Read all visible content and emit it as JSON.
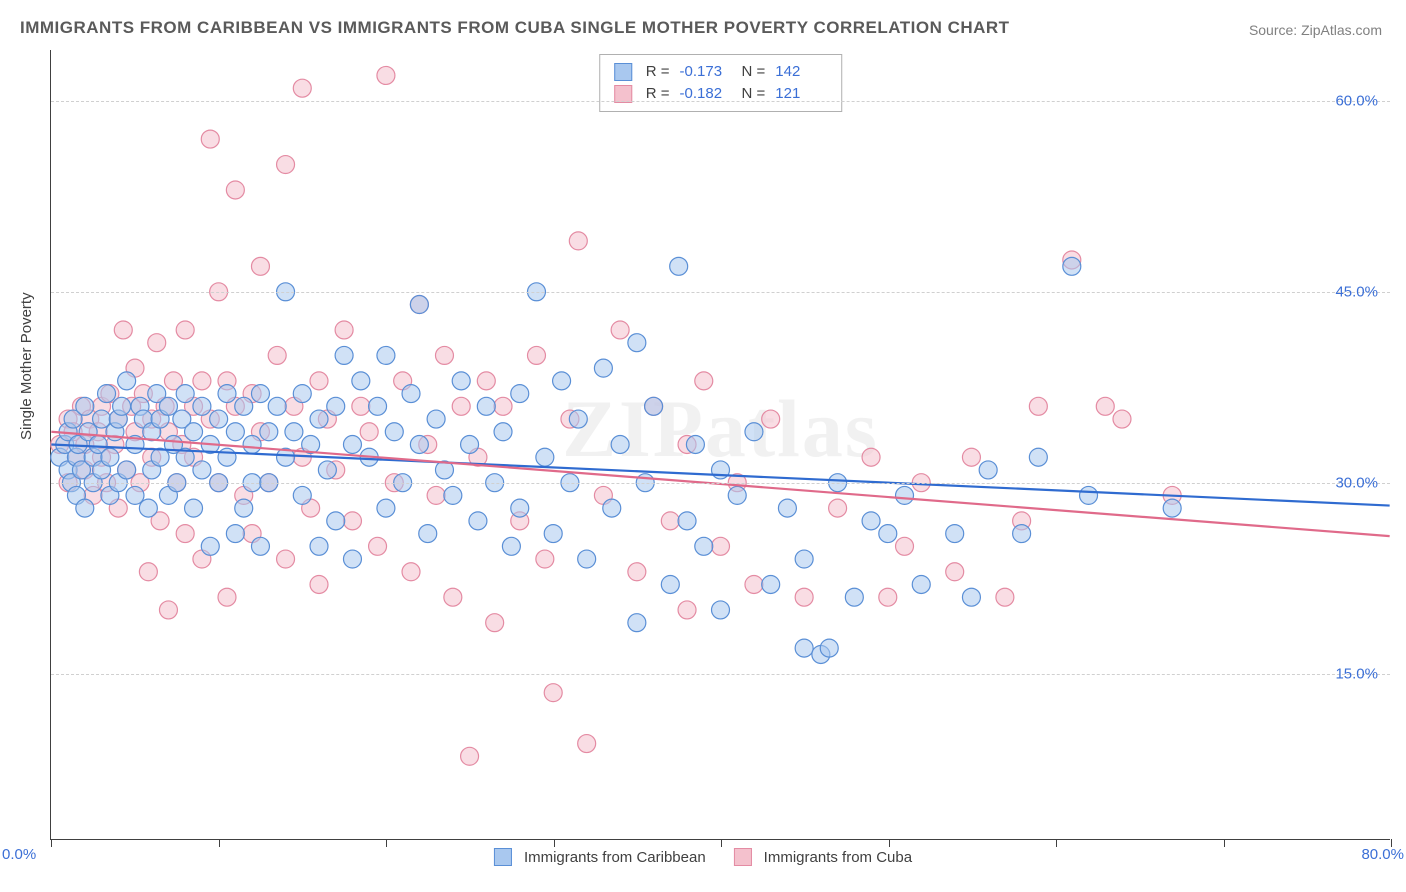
{
  "title": "IMMIGRANTS FROM CARIBBEAN VS IMMIGRANTS FROM CUBA SINGLE MOTHER POVERTY CORRELATION CHART",
  "source": "Source: ZipAtlas.com",
  "watermark": "ZIPatlas",
  "chart": {
    "type": "scatter",
    "ylabel": "Single Mother Poverty",
    "xlim": [
      0,
      80
    ],
    "ylim": [
      2,
      64
    ],
    "x_ticks": [
      0,
      10,
      20,
      30,
      40,
      50,
      60,
      70,
      80
    ],
    "x_tick_labels": {
      "0": "0.0%",
      "80": "80.0%"
    },
    "y_grid": [
      15,
      30,
      45,
      60
    ],
    "y_tick_labels": {
      "15": "15.0%",
      "30": "30.0%",
      "45": "45.0%",
      "60": "60.0%"
    },
    "grid_color": "#d0d0d0",
    "axis_color": "#404040",
    "background_color": "#ffffff",
    "label_fontsize": 15,
    "tick_fontsize": 15,
    "tick_color": "#3b6fd6",
    "marker_radius": 9,
    "marker_opacity": 0.55,
    "line_width": 2.2,
    "series": [
      {
        "name": "Immigrants from Caribbean",
        "fill": "#a9c8ef",
        "stroke": "#5a8fd6",
        "line_color": "#2f6bd0",
        "R": "-0.173",
        "N": "142",
        "trend": {
          "x1": 0,
          "y1": 33.0,
          "x2": 80,
          "y2": 28.2
        },
        "points": [
          [
            0.5,
            32
          ],
          [
            0.8,
            33
          ],
          [
            1,
            31
          ],
          [
            1,
            34
          ],
          [
            1.2,
            30
          ],
          [
            1.3,
            35
          ],
          [
            1.5,
            32
          ],
          [
            1.5,
            29
          ],
          [
            1.6,
            33
          ],
          [
            1.8,
            31
          ],
          [
            2,
            36
          ],
          [
            2,
            28
          ],
          [
            2.2,
            34
          ],
          [
            2.5,
            32
          ],
          [
            2.5,
            30
          ],
          [
            2.8,
            33
          ],
          [
            3,
            31
          ],
          [
            3,
            35
          ],
          [
            3.3,
            37
          ],
          [
            3.5,
            29
          ],
          [
            3.5,
            32
          ],
          [
            3.8,
            34
          ],
          [
            4,
            35
          ],
          [
            4,
            30
          ],
          [
            4.2,
            36
          ],
          [
            4.5,
            38
          ],
          [
            4.5,
            31
          ],
          [
            5,
            33
          ],
          [
            5,
            29
          ],
          [
            5.3,
            36
          ],
          [
            5.5,
            35
          ],
          [
            5.8,
            28
          ],
          [
            6,
            34
          ],
          [
            6,
            31
          ],
          [
            6.3,
            37
          ],
          [
            6.5,
            32
          ],
          [
            6.5,
            35
          ],
          [
            7,
            36
          ],
          [
            7,
            29
          ],
          [
            7.3,
            33
          ],
          [
            7.5,
            30
          ],
          [
            7.8,
            35
          ],
          [
            8,
            32
          ],
          [
            8,
            37
          ],
          [
            8.5,
            34
          ],
          [
            8.5,
            28
          ],
          [
            9,
            36
          ],
          [
            9,
            31
          ],
          [
            9.5,
            33
          ],
          [
            9.5,
            25
          ],
          [
            10,
            35
          ],
          [
            10,
            30
          ],
          [
            10.5,
            37
          ],
          [
            10.5,
            32
          ],
          [
            11,
            34
          ],
          [
            11,
            26
          ],
          [
            11.5,
            36
          ],
          [
            11.5,
            28
          ],
          [
            12,
            33
          ],
          [
            12,
            30
          ],
          [
            12.5,
            37
          ],
          [
            12.5,
            25
          ],
          [
            13,
            34
          ],
          [
            13,
            30
          ],
          [
            13.5,
            36
          ],
          [
            14,
            32
          ],
          [
            14,
            45
          ],
          [
            14.5,
            34
          ],
          [
            15,
            29
          ],
          [
            15,
            37
          ],
          [
            15.5,
            33
          ],
          [
            16,
            35
          ],
          [
            16,
            25
          ],
          [
            16.5,
            31
          ],
          [
            17,
            36
          ],
          [
            17,
            27
          ],
          [
            17.5,
            40
          ],
          [
            18,
            33
          ],
          [
            18,
            24
          ],
          [
            18.5,
            38
          ],
          [
            19,
            32
          ],
          [
            19.5,
            36
          ],
          [
            20,
            40
          ],
          [
            20,
            28
          ],
          [
            20.5,
            34
          ],
          [
            21,
            30
          ],
          [
            21.5,
            37
          ],
          [
            22,
            33
          ],
          [
            22,
            44
          ],
          [
            22.5,
            26
          ],
          [
            23,
            35
          ],
          [
            23.5,
            31
          ],
          [
            24,
            29
          ],
          [
            24.5,
            38
          ],
          [
            25,
            33
          ],
          [
            25.5,
            27
          ],
          [
            26,
            36
          ],
          [
            26.5,
            30
          ],
          [
            27,
            34
          ],
          [
            27.5,
            25
          ],
          [
            28,
            37
          ],
          [
            28,
            28
          ],
          [
            29,
            45
          ],
          [
            29.5,
            32
          ],
          [
            30,
            26
          ],
          [
            30.5,
            38
          ],
          [
            31,
            30
          ],
          [
            31.5,
            35
          ],
          [
            32,
            24
          ],
          [
            33,
            39
          ],
          [
            33.5,
            28
          ],
          [
            34,
            33
          ],
          [
            35,
            41
          ],
          [
            35,
            19
          ],
          [
            35.5,
            30
          ],
          [
            36,
            36
          ],
          [
            37,
            22
          ],
          [
            37.5,
            47
          ],
          [
            38,
            27
          ],
          [
            38.5,
            33
          ],
          [
            39,
            25
          ],
          [
            40,
            31
          ],
          [
            40,
            20
          ],
          [
            41,
            29
          ],
          [
            42,
            34
          ],
          [
            43,
            22
          ],
          [
            44,
            28
          ],
          [
            45,
            17
          ],
          [
            45,
            24
          ],
          [
            46,
            16.5
          ],
          [
            46.5,
            17
          ],
          [
            47,
            30
          ],
          [
            48,
            21
          ],
          [
            49,
            27
          ],
          [
            50,
            26
          ],
          [
            51,
            29
          ],
          [
            52,
            22
          ],
          [
            54,
            26
          ],
          [
            55,
            21
          ],
          [
            56,
            31
          ],
          [
            58,
            26
          ],
          [
            59,
            32
          ],
          [
            61,
            47
          ],
          [
            62,
            29
          ],
          [
            67,
            28
          ]
        ]
      },
      {
        "name": "Immigrants from Cuba",
        "fill": "#f4c1cd",
        "stroke": "#e48ba3",
        "line_color": "#e06a8a",
        "R": "-0.182",
        "N": "121",
        "trend": {
          "x1": 0,
          "y1": 34.0,
          "x2": 80,
          "y2": 25.8
        },
        "points": [
          [
            0.5,
            33
          ],
          [
            1,
            35
          ],
          [
            1,
            30
          ],
          [
            1.3,
            34
          ],
          [
            1.5,
            32
          ],
          [
            1.8,
            36
          ],
          [
            2,
            31
          ],
          [
            2,
            33
          ],
          [
            2.3,
            35
          ],
          [
            2.5,
            29
          ],
          [
            2.8,
            34
          ],
          [
            3,
            32
          ],
          [
            3,
            36
          ],
          [
            3.3,
            30
          ],
          [
            3.5,
            37
          ],
          [
            3.8,
            33
          ],
          [
            4,
            35
          ],
          [
            4,
            28
          ],
          [
            4.3,
            42
          ],
          [
            4.5,
            31
          ],
          [
            4.8,
            36
          ],
          [
            5,
            34
          ],
          [
            5,
            39
          ],
          [
            5.3,
            30
          ],
          [
            5.5,
            37
          ],
          [
            5.8,
            23
          ],
          [
            6,
            35
          ],
          [
            6,
            32
          ],
          [
            6.3,
            41
          ],
          [
            6.5,
            27
          ],
          [
            6.8,
            36
          ],
          [
            7,
            34
          ],
          [
            7,
            20
          ],
          [
            7.3,
            38
          ],
          [
            7.5,
            30
          ],
          [
            7.8,
            33
          ],
          [
            8,
            42
          ],
          [
            8,
            26
          ],
          [
            8.5,
            36
          ],
          [
            8.5,
            32
          ],
          [
            9,
            38
          ],
          [
            9,
            24
          ],
          [
            9.5,
            57
          ],
          [
            9.5,
            35
          ],
          [
            10,
            45
          ],
          [
            10,
            30
          ],
          [
            10.5,
            38
          ],
          [
            10.5,
            21
          ],
          [
            11,
            36
          ],
          [
            11,
            53
          ],
          [
            11.5,
            29
          ],
          [
            12,
            37
          ],
          [
            12,
            26
          ],
          [
            12.5,
            47
          ],
          [
            12.5,
            34
          ],
          [
            13,
            30
          ],
          [
            13.5,
            40
          ],
          [
            14,
            24
          ],
          [
            14,
            55
          ],
          [
            14.5,
            36
          ],
          [
            15,
            32
          ],
          [
            15,
            61
          ],
          [
            15.5,
            28
          ],
          [
            16,
            38
          ],
          [
            16,
            22
          ],
          [
            16.5,
            35
          ],
          [
            17,
            31
          ],
          [
            17.5,
            42
          ],
          [
            18,
            27
          ],
          [
            18.5,
            36
          ],
          [
            19,
            34
          ],
          [
            19.5,
            25
          ],
          [
            20,
            62
          ],
          [
            20.5,
            30
          ],
          [
            21,
            38
          ],
          [
            21.5,
            23
          ],
          [
            22,
            44
          ],
          [
            22.5,
            33
          ],
          [
            23,
            29
          ],
          [
            23.5,
            40
          ],
          [
            24,
            21
          ],
          [
            24.5,
            36
          ],
          [
            25,
            8.5
          ],
          [
            25.5,
            32
          ],
          [
            26,
            38
          ],
          [
            26.5,
            19
          ],
          [
            27,
            36
          ],
          [
            28,
            27
          ],
          [
            29,
            40
          ],
          [
            29.5,
            24
          ],
          [
            30,
            13.5
          ],
          [
            31,
            35
          ],
          [
            31.5,
            49
          ],
          [
            32,
            9.5
          ],
          [
            33,
            29
          ],
          [
            34,
            42
          ],
          [
            35,
            23
          ],
          [
            36,
            36
          ],
          [
            37,
            27
          ],
          [
            38,
            33
          ],
          [
            38,
            20
          ],
          [
            39,
            38
          ],
          [
            40,
            25
          ],
          [
            41,
            30
          ],
          [
            42,
            22
          ],
          [
            43,
            35
          ],
          [
            45,
            21
          ],
          [
            47,
            28
          ],
          [
            49,
            32
          ],
          [
            50,
            21
          ],
          [
            51,
            25
          ],
          [
            52,
            30
          ],
          [
            54,
            23
          ],
          [
            55,
            32
          ],
          [
            57,
            21
          ],
          [
            58,
            27
          ],
          [
            59,
            36
          ],
          [
            61,
            47.5
          ],
          [
            63,
            36
          ],
          [
            64,
            35
          ],
          [
            67,
            29
          ]
        ]
      }
    ]
  },
  "legend_bottom": [
    {
      "label": "Immigrants from Caribbean",
      "fill": "#a9c8ef",
      "stroke": "#5a8fd6"
    },
    {
      "label": "Immigrants from Cuba",
      "fill": "#f4c1cd",
      "stroke": "#e48ba3"
    }
  ]
}
